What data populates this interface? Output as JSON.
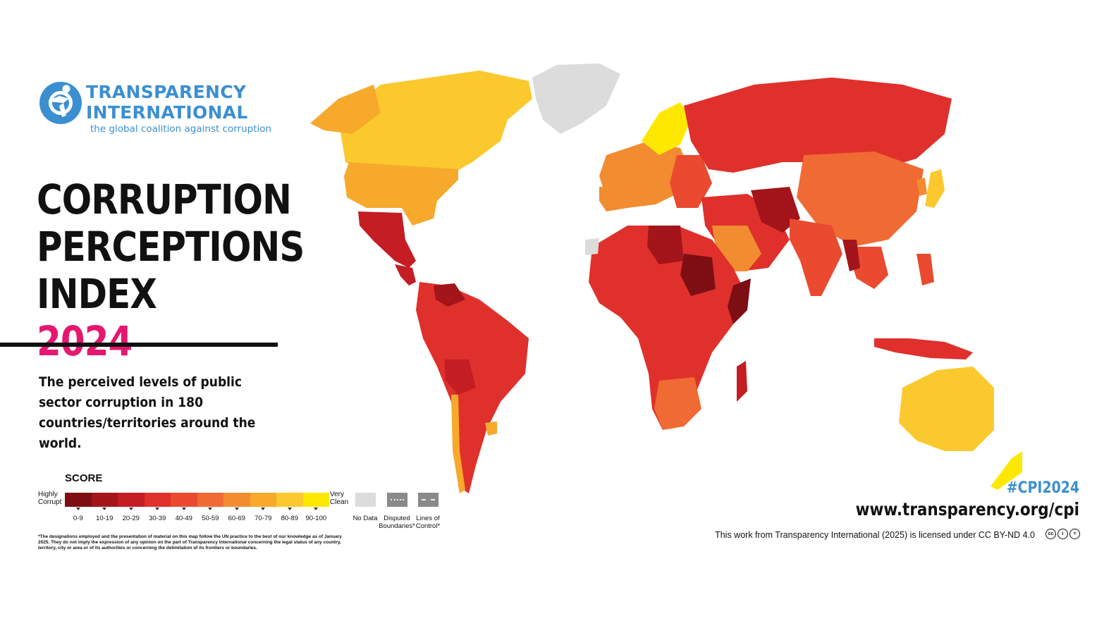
{
  "logo": {
    "name_line1": "TRANSPARENCY",
    "name_line2": "INTERNATIONAL",
    "tagline": "the global coalition against corruption",
    "icon": "transparency-international-logo-icon",
    "color": "#3b8fd1"
  },
  "title": {
    "line1": "CORRUPTION",
    "line2": "PERCEPTIONS",
    "line3_prefix": "INDEX",
    "year": "2024",
    "year_color": "#e6176f"
  },
  "description": "The perceived levels of public sector corruption in 180 countries/territories around the world.",
  "legend": {
    "title": "SCORE",
    "left_label": "Highly Corrupt",
    "right_label": "Very Clean",
    "bins": [
      {
        "label": "0-9",
        "color": "#7d0f14"
      },
      {
        "label": "10-19",
        "color": "#a3141b"
      },
      {
        "label": "20-29",
        "color": "#c41d24"
      },
      {
        "label": "30-39",
        "color": "#e0302c"
      },
      {
        "label": "40-49",
        "color": "#ea4a30"
      },
      {
        "label": "50-59",
        "color": "#f06a34"
      },
      {
        "label": "60-69",
        "color": "#f28c30"
      },
      {
        "label": "70-79",
        "color": "#f6a92b"
      },
      {
        "label": "80-89",
        "color": "#fbc92e"
      },
      {
        "label": "90-100",
        "color": "#ffe800"
      }
    ],
    "no_data": {
      "label": "No Data",
      "color": "#dcdcdc"
    },
    "disputed": {
      "label": "Disputed Boundaries*",
      "color": "#8a8a8a"
    },
    "lines_of_control": {
      "label": "Lines of Control*",
      "color": "#8a8a8a"
    }
  },
  "footnote": "*The designations employed and the presentation of material on this map follow the UN practice to the best of our knowledge as of January 2025. They do not imply the expression of any opinion on the part of Transparency International concerning the legal status of any country, territory, city or area or of its authorities or concerning the delimitation of its frontiers or boundaries.",
  "hashtag": "#CPI2024",
  "website": "www.transparency.org/cpi",
  "license": "This work from Transparency International (2025) is licensed under CC BY-ND 4.0",
  "license_icons": [
    "cc-icon",
    "by-icon",
    "nd-icon"
  ],
  "map": {
    "regions": [
      {
        "name": "canada",
        "score_band": "80-89"
      },
      {
        "name": "usa",
        "score_band": "60-69"
      },
      {
        "name": "greenland",
        "score_band": "no-data"
      },
      {
        "name": "mexico",
        "score_band": "20-29"
      },
      {
        "name": "south-america",
        "score_band": "30-39"
      },
      {
        "name": "venezuela",
        "score_band": "10-19"
      },
      {
        "name": "europe-west",
        "score_band": "70-79"
      },
      {
        "name": "scandinavia",
        "score_band": "80-89"
      },
      {
        "name": "russia",
        "score_band": "20-29"
      },
      {
        "name": "china",
        "score_band": "40-49"
      },
      {
        "name": "africa",
        "score_band": "30-39"
      },
      {
        "name": "libya-sudan",
        "score_band": "10-19"
      },
      {
        "name": "middle-east",
        "score_band": "30-39"
      },
      {
        "name": "india",
        "score_band": "30-39"
      },
      {
        "name": "australia",
        "score_band": "70-79"
      },
      {
        "name": "japan",
        "score_band": "70-79"
      }
    ]
  }
}
